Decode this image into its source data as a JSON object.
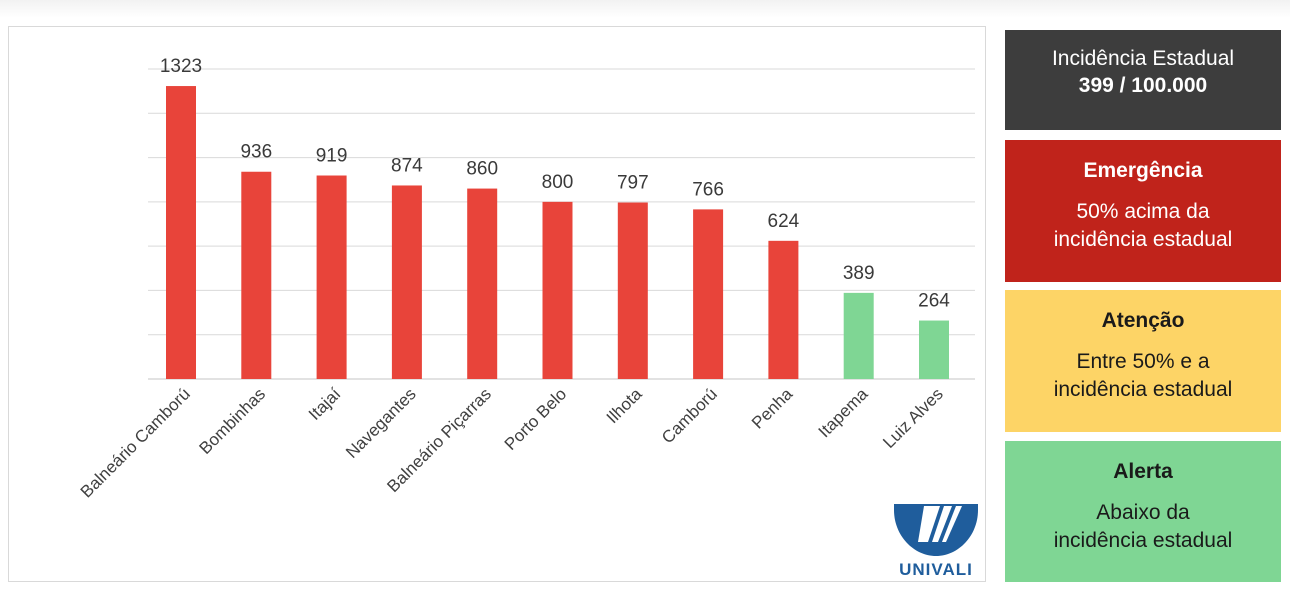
{
  "chart_data": {
    "type": "bar",
    "title": "",
    "xlabel": "",
    "ylabel": "",
    "ylim": [
      0,
      1400
    ],
    "y_gridlines": [
      200,
      400,
      600,
      800,
      1000,
      1200,
      1400
    ],
    "grid": "horizontal",
    "categories": [
      "Balneário Camború",
      "Bombinhas",
      "Itajaí",
      "Navegantes",
      "Balneário Piçarras",
      "Porto Belo",
      "Ilhota",
      "Camború",
      "Penha",
      "Itapema",
      "Luiz Alves"
    ],
    "values": [
      1323,
      936,
      919,
      874,
      860,
      800,
      797,
      766,
      624,
      389,
      264
    ],
    "bar_colors": [
      "#e8443a",
      "#e8443a",
      "#e8443a",
      "#e8443a",
      "#e8443a",
      "#e8443a",
      "#e8443a",
      "#e8443a",
      "#e8443a",
      "#7fd694",
      "#7fd694"
    ],
    "gridline_color": "#d9d9d9"
  },
  "legend": {
    "state": {
      "title": "Incidência Estadual",
      "value": "399 / 100.000",
      "color": "#3d3d3d"
    },
    "emergency": {
      "title": "Emergência",
      "desc_line1": "50% acima da",
      "desc_line2": "incidência estadual",
      "color": "#c0231b"
    },
    "attention": {
      "title": "Atenção",
      "desc_line1": "Entre 50% e a",
      "desc_line2": "incidência estadual",
      "color": "#fdd466"
    },
    "alert": {
      "title": "Alerta",
      "desc_line1": "Abaixo da",
      "desc_line2": "incidência estadual",
      "color": "#7fd694"
    }
  },
  "logo": {
    "text": "UNIVALI",
    "color": "#1f5d9c",
    "icon": "univali-logo-icon"
  }
}
